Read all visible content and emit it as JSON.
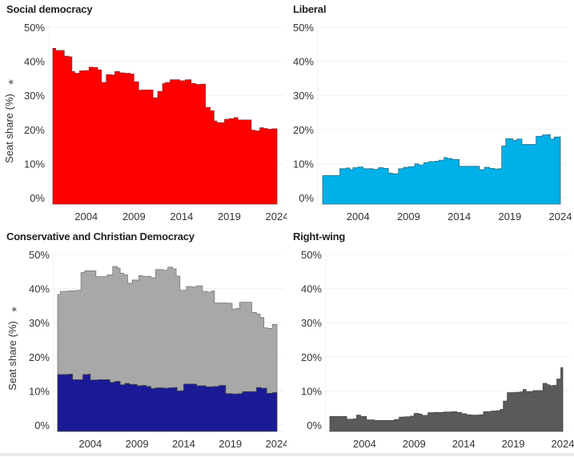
{
  "chart_data": [
    {
      "type": "area",
      "title": "Social democracy",
      "ylabel": "Seat share (%)",
      "ylim": [
        0,
        50
      ],
      "xlim": [
        2000.5,
        2024
      ],
      "yticks": [
        "0%",
        "10%",
        "20%",
        "30%",
        "40%",
        "50%"
      ],
      "xticks": [
        "2004",
        "2009",
        "2014",
        "2019",
        "2024"
      ],
      "grid": true,
      "series": [
        {
          "name": "Social democracy",
          "color": "#ff0000",
          "x": [
            2000.5,
            2000.8,
            2001.2,
            2001.7,
            2002.2,
            2002.5,
            2002.8,
            2003.3,
            2003.8,
            2004.3,
            2004.7,
            2005.2,
            2005.6,
            2006.1,
            2006.7,
            2007.0,
            2007.5,
            2008.0,
            2008.6,
            2009.0,
            2009.5,
            2009.8,
            2010.4,
            2011.0,
            2011.5,
            2012.0,
            2012.3,
            2012.8,
            2013.3,
            2013.8,
            2014.4,
            2015.0,
            2015.5,
            2016.0,
            2016.5,
            2017.0,
            2017.4,
            2017.7,
            2018.0,
            2018.5,
            2019.0,
            2019.5,
            2019.9,
            2020.2,
            2021.3,
            2021.7,
            2022.2,
            2022.6,
            2023.0,
            2023.5,
            2024.0
          ],
          "y": [
            43.8,
            43.2,
            43.2,
            41.5,
            41.3,
            37.0,
            36.5,
            37.2,
            37.3,
            38.3,
            38.2,
            37.5,
            33.8,
            36.1,
            36.0,
            37.0,
            36.6,
            36.5,
            36.3,
            34.0,
            31.5,
            31.6,
            31.6,
            29.3,
            31.2,
            33.5,
            33.8,
            34.6,
            34.6,
            34.3,
            34.6,
            33.5,
            33.2,
            33.3,
            26.5,
            25.5,
            22.5,
            22.0,
            22.0,
            23.0,
            23.2,
            23.5,
            22.8,
            22.8,
            19.8,
            19.6,
            20.5,
            20.3,
            20.1,
            20.2,
            20.3
          ]
        }
      ]
    },
    {
      "type": "area",
      "title": "Liberal",
      "ylabel": "",
      "ylim": [
        0,
        50
      ],
      "xlim": [
        2000.5,
        2024
      ],
      "yticks": [
        "0%",
        "10%",
        "20%",
        "30%",
        "40%",
        "50%"
      ],
      "xticks": [
        "2004",
        "2009",
        "2014",
        "2019",
        "2024"
      ],
      "grid": true,
      "series": [
        {
          "name": "Liberal",
          "color": "#00b0e8",
          "x": [
            2000.5,
            2001.8,
            2002.2,
            2002.8,
            2003.2,
            2003.5,
            2004.0,
            2004.5,
            2005.5,
            2006.0,
            2006.5,
            2007.0,
            2007.4,
            2008.0,
            2008.5,
            2009.0,
            2009.6,
            2010.0,
            2010.5,
            2011.0,
            2011.6,
            2012.0,
            2012.5,
            2012.8,
            2013.3,
            2014.0,
            2014.5,
            2015.5,
            2016.0,
            2016.5,
            2017.0,
            2017.5,
            2017.8,
            2018.2,
            2018.6,
            2019.3,
            2019.7,
            2020.2,
            2021.2,
            2021.6,
            2022.2,
            2022.7,
            2023.0,
            2023.4,
            2024.0
          ],
          "y": [
            6.5,
            6.5,
            8.5,
            8.7,
            8.2,
            8.8,
            9.0,
            8.5,
            8.3,
            8.8,
            8.6,
            7.2,
            7.0,
            8.5,
            8.9,
            9.1,
            9.9,
            9.6,
            10.3,
            10.6,
            10.7,
            11.0,
            11.8,
            11.5,
            11.2,
            9.2,
            9.2,
            9.2,
            8.2,
            8.9,
            8.6,
            8.4,
            8.5,
            15.2,
            17.3,
            16.8,
            17.2,
            15.6,
            15.6,
            18.0,
            18.4,
            18.5,
            17.2,
            17.8,
            18.0
          ]
        }
      ]
    },
    {
      "type": "area",
      "title": "Conservative and Christian Democracy",
      "ylabel": "Seat share (%)",
      "ylim": [
        0,
        50
      ],
      "xlim": [
        2000.5,
        2024
      ],
      "yticks": [
        "0%",
        "10%",
        "20%",
        "30%",
        "40%",
        "50%"
      ],
      "xticks": [
        "2004",
        "2009",
        "2014",
        "2019",
        "2024"
      ],
      "grid": true,
      "series": [
        {
          "name": "Conservative (total)",
          "color": "#a8a8a8",
          "x": [
            2000.5,
            2000.8,
            2001.6,
            2002.5,
            2003.0,
            2003.4,
            2004.0,
            2004.6,
            2005.5,
            2005.8,
            2006.4,
            2006.9,
            2007.2,
            2007.6,
            2008.0,
            2008.5,
            2009.2,
            2009.6,
            2010.5,
            2011.0,
            2011.8,
            2012.3,
            2012.8,
            2013.2,
            2013.6,
            2014.3,
            2014.9,
            2015.4,
            2016.0,
            2016.5,
            2017.0,
            2017.3,
            2018.0,
            2018.6,
            2019.2,
            2019.6,
            2020.0,
            2020.5,
            2021.3,
            2021.8,
            2022.2,
            2022.6,
            2023.0,
            2023.5,
            2024.0
          ],
          "y": [
            38.3,
            39.2,
            39.3,
            39.5,
            44.7,
            45.2,
            45.2,
            43.5,
            43.5,
            44.0,
            46.5,
            46.0,
            44.5,
            44.0,
            41.6,
            42.5,
            43.8,
            43.6,
            43.2,
            45.6,
            45.4,
            46.3,
            45.8,
            43.7,
            39.5,
            40.6,
            40.5,
            40.8,
            39.2,
            39.0,
            39.3,
            35.8,
            35.8,
            35.7,
            34.0,
            34.2,
            36.0,
            36.0,
            33.0,
            32.5,
            31.5,
            28.5,
            28.3,
            29.5,
            28.8
          ]
        },
        {
          "name": "Christian Democracy",
          "color": "#1a1a96",
          "x": [
            2000.5,
            2001.7,
            2002.1,
            2002.8,
            2003.2,
            2003.8,
            2004.0,
            2004.8,
            2005.6,
            2006.1,
            2006.6,
            2007.2,
            2007.7,
            2008.2,
            2009.0,
            2009.5,
            2010.0,
            2010.5,
            2011.0,
            2011.8,
            2012.4,
            2013.0,
            2013.3,
            2013.8,
            2014.0,
            2014.8,
            2015.4,
            2016.0,
            2016.4,
            2017.2,
            2017.8,
            2018.5,
            2019.2,
            2019.8,
            2020.3,
            2020.8,
            2021.3,
            2021.8,
            2022.3,
            2022.9,
            2023.5,
            2024.0
          ],
          "y": [
            14.8,
            14.9,
            13.3,
            13.3,
            14.8,
            14.9,
            13.2,
            13.3,
            13.3,
            12.5,
            12.8,
            11.8,
            12.2,
            11.9,
            11.5,
            11.6,
            11.3,
            10.7,
            10.9,
            10.8,
            10.9,
            11.0,
            10.0,
            10.1,
            12.0,
            12.0,
            11.5,
            11.5,
            11.2,
            11.3,
            11.6,
            9.2,
            9.1,
            9.2,
            9.8,
            9.8,
            9.8,
            11.0,
            10.8,
            9.3,
            9.5,
            9.5
          ]
        }
      ]
    },
    {
      "type": "area",
      "title": "Right-wing",
      "ylabel": "",
      "ylim": [
        0,
        50
      ],
      "xlim": [
        2000.5,
        2024
      ],
      "yticks": [
        "0%",
        "10%",
        "20%",
        "30%",
        "40%",
        "50%"
      ],
      "xticks": [
        "2004",
        "2009",
        "2014",
        "2019",
        "2024"
      ],
      "grid": true,
      "series": [
        {
          "name": "Right-wing",
          "color": "#5a5a5a",
          "x": [
            2000.5,
            2001.8,
            2002.2,
            2002.9,
            2003.2,
            2003.6,
            2004.2,
            2005.0,
            2006.0,
            2006.6,
            2007.0,
            2007.5,
            2008.0,
            2008.6,
            2009.0,
            2009.5,
            2009.8,
            2010.4,
            2011.0,
            2012.0,
            2012.8,
            2013.3,
            2013.8,
            2014.3,
            2014.8,
            2015.6,
            2016.0,
            2016.8,
            2017.3,
            2017.7,
            2018.0,
            2018.4,
            2019.2,
            2019.7,
            2020.0,
            2020.3,
            2021.0,
            2021.6,
            2022.0,
            2022.4,
            2022.7,
            2023.0,
            2023.4,
            2023.8,
            2024.0
          ],
          "y": [
            2.5,
            2.5,
            1.7,
            1.8,
            2.9,
            2.5,
            1.5,
            1.3,
            1.3,
            1.3,
            1.6,
            2.3,
            2.4,
            2.6,
            3.4,
            3.2,
            2.8,
            3.6,
            3.7,
            3.8,
            3.9,
            3.7,
            3.3,
            3.0,
            2.9,
            3.0,
            3.9,
            4.1,
            4.2,
            4.6,
            7.0,
            9.5,
            9.6,
            9.7,
            10.4,
            9.8,
            10.1,
            10.1,
            12.2,
            11.8,
            11.5,
            11.6,
            13.5,
            16.8,
            16.2
          ]
        }
      ]
    }
  ]
}
